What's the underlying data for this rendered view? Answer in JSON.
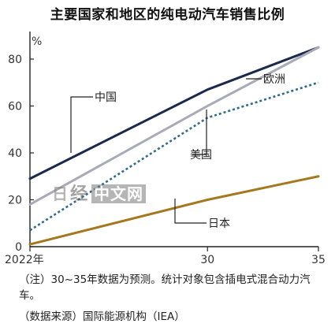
{
  "title": "主要国家和地区的纯电动汽车销售比例",
  "watermark": {
    "part1": "日",
    "part2": "经",
    "part3": "中文网"
  },
  "notes": {
    "note": "（注）30~35年数据为预测。统计对象包含插电式混合动力汽车。",
    "source": "（数据来源）国际能源机构（IEA）"
  },
  "colors": {
    "china": "#1b2a4a",
    "europe": "#a9a9b8",
    "usa": "#2f6a8f",
    "japan": "#a6781e"
  },
  "chart_data": {
    "type": "line",
    "x": [
      "2022年",
      "30",
      "35"
    ],
    "xvalues": [
      2022,
      2030,
      2035
    ],
    "ylabel": "%",
    "ylim": [
      0,
      90
    ],
    "yticks": [
      0,
      20,
      40,
      60,
      80
    ],
    "grid": false,
    "series": [
      {
        "name": "中国",
        "values": [
          29,
          67,
          85
        ],
        "style": "solid"
      },
      {
        "name": "欧洲",
        "values": [
          18,
          60,
          85
        ],
        "style": "solid"
      },
      {
        "name": "美国",
        "values": [
          7,
          55,
          70
        ],
        "style": "dotted"
      },
      {
        "name": "日本",
        "values": [
          1,
          20,
          30
        ],
        "style": "solid"
      }
    ]
  }
}
